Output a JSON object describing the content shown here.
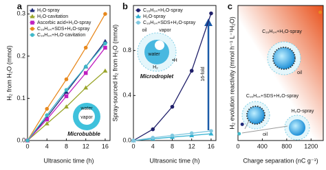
{
  "chart_data": [
    {
      "type": "line",
      "panel": "a",
      "xlabel": "Ultrasonic time (h)",
      "ylabel": "H₂ from H₂O (mmol)",
      "x": [
        0,
        4,
        8,
        12,
        16
      ],
      "xlim": [
        0,
        17
      ],
      "xticks": [
        0,
        4,
        8,
        12,
        16
      ],
      "ylim": [
        0,
        0.32
      ],
      "yticks": [
        {
          "value": 0,
          "label": "0.0"
        },
        0.1,
        0.2,
        0.3
      ],
      "legend": "upper left",
      "series": [
        {
          "name": "H₂O-spray",
          "color": "#1f2a7a",
          "marker": "triangle",
          "values": [
            0,
            0.055,
            0.115,
            0.175,
            0.235
          ]
        },
        {
          "name": "H₂O-cavitation",
          "color": "#9aa52a",
          "marker": "triangle",
          "values": [
            0,
            0.04,
            0.08,
            0.125,
            0.165
          ]
        },
        {
          "name": "Ascorbic acid+H₂O-spray",
          "color": "#c020c0",
          "marker": "square",
          "values": [
            0,
            0.05,
            0.105,
            0.16,
            0.22
          ]
        },
        {
          "name": "C₁₆H₃₄+SDS+H₂O-spray",
          "color": "#e8891e",
          "marker": "circle",
          "values": [
            0,
            0.075,
            0.145,
            0.22,
            0.3
          ]
        },
        {
          "name": "C₁₆H₃₄+H₂O-cavitation",
          "color": "#3fb8c8",
          "marker": "circle",
          "values": [
            0,
            0.06,
            0.12,
            0.175,
            0.23
          ]
        }
      ],
      "annotations": [
        "water",
        "vapor",
        "Microbubble"
      ]
    },
    {
      "type": "line",
      "panel": "b",
      "xlabel": "Ultrasonic time (h)",
      "ylabel": "Spray-sourced H₂ from H₂O (mmol)",
      "x": [
        0,
        4,
        8,
        12,
        16
      ],
      "xlim": [
        0,
        17
      ],
      "xticks": [
        0,
        4,
        8,
        12,
        16
      ],
      "ylim": [
        0,
        1.2
      ],
      "yticks": [
        {
          "value": 0,
          "label": "0.0"
        },
        0.4,
        0.8
      ],
      "legend": "upper left",
      "series": [
        {
          "name": "C₁₆H₃₄+H₂O-spray",
          "color": "#20206a",
          "marker": "circle",
          "values": [
            0,
            0.1,
            0.3,
            0.62,
            1.13
          ]
        },
        {
          "name": "H₂O-spray",
          "color": "#30b0d0",
          "marker": "triangle",
          "values": [
            0,
            0.015,
            0.03,
            0.045,
            0.06
          ]
        },
        {
          "name": "C₁₆H₃₄+SDS+H₂O-spray",
          "color": "#80c8e0",
          "marker": "circle",
          "values": [
            0,
            0.025,
            0.045,
            0.065,
            0.085
          ]
        }
      ],
      "annotations": [
        "16-fold",
        "Microdroplet",
        "water",
        "vapor",
        "oil",
        "H₂",
        "•H"
      ]
    },
    {
      "type": "scatter",
      "panel": "c",
      "xlabel": "Charge separation (nC g⁻¹)",
      "ylabel": "H₂ evolution reactivity (mmol h⁻¹ L⁻¹H₂O)",
      "xlim": [
        0,
        1400
      ],
      "xticks": [
        0,
        400,
        800,
        1200
      ],
      "ylim": [
        0,
        1
      ],
      "x": [
        20,
        70,
        1350
      ],
      "values": [
        0.05,
        0.12,
        0.95
      ],
      "colors": [
        "#3fb8c8",
        "#1f2a7a",
        "#e8891e"
      ],
      "point_labels": [
        "H₂O-spray",
        "C₁₆H₃₄+SDS+H₂O-spray",
        "C₁₆H₃₄+H₂O-spray"
      ],
      "annotations": [
        "oil",
        "oil"
      ]
    }
  ]
}
